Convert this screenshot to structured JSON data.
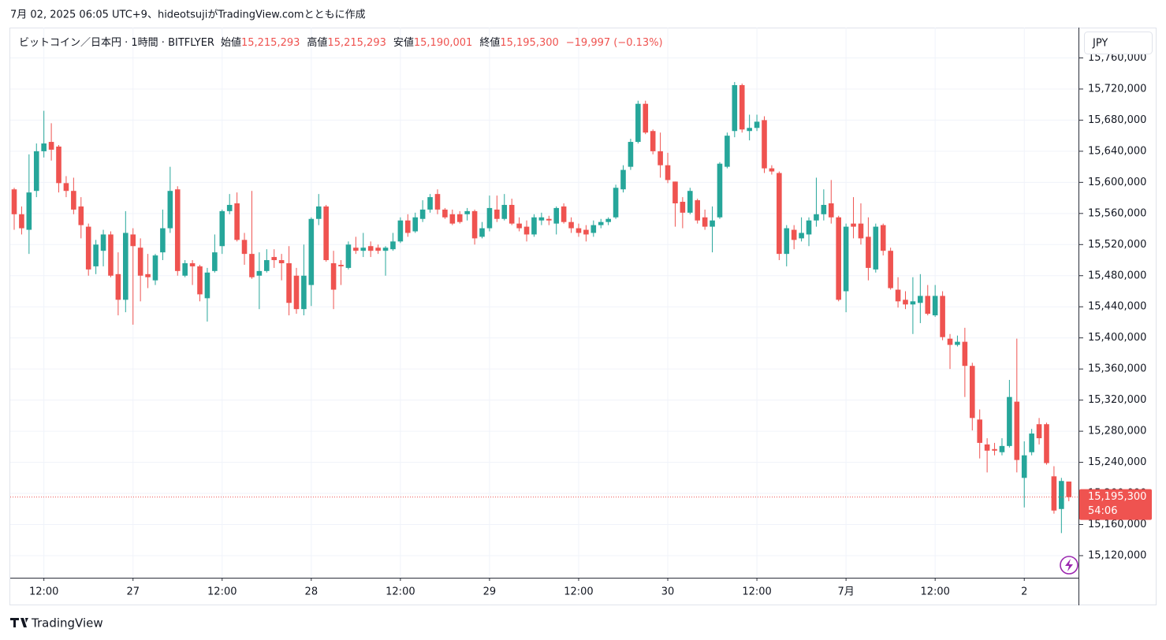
{
  "chart_data": {
    "type": "candlestick",
    "caption": "7月 02, 2025 06:05 UTC+9、hideotsujiがTradingView.comとともに作成",
    "symbol": "ビットコイン／日本円 · 1時間 · BITFLYER",
    "ohlc_legend": {
      "open_name": "始値",
      "open": "15,215,293",
      "high_name": "高値",
      "high": "15,215,293",
      "low_name": "安値",
      "low": "15,190,001",
      "close_name": "終値",
      "close": "15,195,300",
      "change": "−19,997 (−0.13%)"
    },
    "currency": "JPY",
    "last_price_label": "15,195,300",
    "countdown": "54:06",
    "brand": "TradingView",
    "up_color": "#26a69a",
    "down_color": "#ef5350",
    "grid": true,
    "open": [
      15591000,
      15559000,
      15539000,
      15589000,
      15640000,
      15652000,
      15646000,
      15599000,
      15589000,
      15569000,
      15543000,
      15492000,
      15512000,
      15533000,
      15482000,
      15449000,
      15533000,
      15516000,
      15482000,
      15474000,
      15510000,
      15541000,
      15591000,
      15480000,
      15496000,
      15492000,
      15451000,
      15486000,
      15518000,
      15563000,
      15573000,
      15526000,
      15508000,
      15480000,
      15486000,
      15504000,
      15500000,
      15496000,
      15480000,
      15437000,
      15468000,
      15553000,
      15569000,
      15496000,
      15494000,
      15490000,
      15516000,
      15512000,
      15518000,
      15516000,
      15512000,
      15514000,
      15524000,
      15551000,
      15537000,
      15553000,
      15565000,
      15585000,
      15565000,
      15559000,
      15559000,
      15559000,
      15563000,
      15530000,
      15541000,
      15565000,
      15553000,
      15571000,
      15547000,
      15543000,
      15533000,
      15551000,
      15553000,
      15547000,
      15569000,
      15549000,
      15541000,
      15539000,
      15535000,
      15545000,
      15549000,
      15555000,
      15591000,
      15620000,
      15652000,
      15701000,
      15666000,
      15640000,
      15622000,
      15601000,
      15575000,
      15561000,
      15577000,
      15555000,
      15543000,
      15555000,
      15620000,
      15666000,
      15725000,
      15666000,
      15670000,
      15680000,
      15618000,
      15612000,
      15508000,
      15539000,
      15528000,
      15533000,
      15551000,
      15559000,
      15573000,
      15555000,
      15460000,
      15547000,
      15547000,
      15530000,
      15488000,
      15545000,
      15512000,
      15462000,
      15449000,
      15443000,
      15445000,
      15454000,
      15429000,
      15454000,
      15399000,
      15391000,
      15395000,
      15364000,
      15295000,
      15263000,
      15257000,
      15253000,
      15261000,
      15318000,
      15220000,
      15253000,
      15289000,
      15289000,
      15222000,
      15180000,
      15215293
    ],
    "high": [
      15593000,
      15569000,
      15636000,
      15650000,
      15692000,
      15676000,
      15648000,
      15608000,
      15606000,
      15581000,
      15547000,
      15526000,
      15539000,
      15537000,
      15510000,
      15563000,
      15541000,
      15528000,
      15508000,
      15508000,
      15565000,
      15620000,
      15595000,
      15500000,
      15500000,
      15494000,
      15490000,
      15533000,
      15565000,
      15585000,
      15587000,
      15535000,
      15589000,
      15510000,
      15514000,
      15514000,
      15508000,
      15518000,
      15490000,
      15520000,
      15555000,
      15585000,
      15571000,
      15512000,
      15500000,
      15524000,
      15530000,
      15535000,
      15524000,
      15520000,
      15518000,
      15535000,
      15555000,
      15559000,
      15561000,
      15577000,
      15585000,
      15591000,
      15567000,
      15565000,
      15563000,
      15567000,
      15565000,
      15549000,
      15583000,
      15583000,
      15585000,
      15579000,
      15555000,
      15551000,
      15559000,
      15561000,
      15557000,
      15569000,
      15573000,
      15555000,
      15547000,
      15545000,
      15551000,
      15553000,
      15555000,
      15597000,
      15622000,
      15656000,
      15705000,
      15705000,
      15668000,
      15664000,
      15638000,
      15601000,
      15581000,
      15593000,
      15579000,
      15565000,
      15569000,
      15626000,
      15664000,
      15729000,
      15727000,
      15687000,
      15687000,
      15685000,
      15622000,
      15614000,
      15545000,
      15545000,
      15555000,
      15555000,
      15606000,
      15591000,
      15603000,
      15557000,
      15547000,
      15581000,
      15573000,
      15555000,
      15547000,
      15547000,
      15516000,
      15478000,
      15460000,
      15478000,
      15482000,
      15468000,
      15468000,
      15460000,
      15405000,
      15403000,
      15413000,
      15368000,
      15308000,
      15271000,
      15265000,
      15271000,
      15346000,
      15399000,
      15267000,
      15283000,
      15297000,
      15291000,
      15235000,
      15220000,
      15215293
    ],
    "low": [
      15539000,
      15533000,
      15508000,
      15581000,
      15632000,
      15628000,
      15587000,
      15581000,
      15559000,
      15528000,
      15480000,
      15482000,
      15492000,
      15478000,
      15429000,
      15433000,
      15417000,
      15447000,
      15464000,
      15468000,
      15500000,
      15535000,
      15480000,
      15478000,
      15468000,
      15447000,
      15421000,
      15484000,
      15508000,
      15559000,
      15524000,
      15494000,
      15476000,
      15437000,
      15484000,
      15490000,
      15474000,
      15429000,
      15431000,
      15429000,
      15441000,
      15545000,
      15498000,
      15437000,
      15468000,
      15488000,
      15508000,
      15504000,
      15504000,
      15508000,
      15480000,
      15512000,
      15522000,
      15530000,
      15535000,
      15549000,
      15561000,
      15559000,
      15553000,
      15545000,
      15547000,
      15551000,
      15520000,
      15528000,
      15537000,
      15549000,
      15551000,
      15545000,
      15537000,
      15524000,
      15530000,
      15545000,
      15545000,
      15533000,
      15547000,
      15535000,
      15530000,
      15524000,
      15530000,
      15541000,
      15545000,
      15553000,
      15587000,
      15616000,
      15650000,
      15662000,
      15636000,
      15606000,
      15599000,
      15543000,
      15541000,
      15559000,
      15547000,
      15539000,
      15510000,
      15553000,
      15618000,
      15658000,
      15664000,
      15654000,
      15666000,
      15612000,
      15610000,
      15500000,
      15492000,
      15514000,
      15524000,
      15518000,
      15543000,
      15551000,
      15547000,
      15447000,
      15433000,
      15528000,
      15520000,
      15474000,
      15484000,
      15506000,
      15462000,
      15439000,
      15437000,
      15405000,
      15419000,
      15429000,
      15427000,
      15397000,
      15360000,
      15389000,
      15324000,
      15281000,
      15245000,
      15227000,
      15249000,
      15249000,
      15259000,
      15227000,
      15182000,
      15249000,
      15263000,
      15237000,
      15174000,
      15149000,
      15190001
    ],
    "close": [
      15559000,
      15541000,
      15587000,
      15640000,
      15650000,
      15642000,
      15599000,
      15589000,
      15565000,
      15545000,
      15488000,
      15520000,
      15533000,
      15480000,
      15449000,
      15535000,
      15518000,
      15480000,
      15478000,
      15506000,
      15541000,
      15589000,
      15486000,
      15496000,
      15492000,
      15456000,
      15484000,
      15510000,
      15563000,
      15571000,
      15526000,
      15508000,
      15478000,
      15486000,
      15500000,
      15500000,
      15496000,
      15445000,
      15437000,
      15480000,
      15553000,
      15569000,
      15500000,
      15462000,
      15492000,
      15520000,
      15512000,
      15516000,
      15512000,
      15512000,
      15516000,
      15524000,
      15551000,
      15535000,
      15555000,
      15565000,
      15581000,
      15565000,
      15555000,
      15547000,
      15549000,
      15563000,
      15528000,
      15541000,
      15567000,
      15553000,
      15571000,
      15547000,
      15541000,
      15533000,
      15555000,
      15555000,
      15551000,
      15567000,
      15549000,
      15541000,
      15535000,
      15533000,
      15545000,
      15549000,
      15553000,
      15593000,
      15616000,
      15652000,
      15701000,
      15664000,
      15640000,
      15622000,
      15603000,
      15573000,
      15561000,
      15589000,
      15551000,
      15543000,
      15551000,
      15624000,
      15660000,
      15725000,
      15668000,
      15670000,
      15678000,
      15618000,
      15614000,
      15508000,
      15541000,
      15526000,
      15535000,
      15551000,
      15559000,
      15571000,
      15555000,
      15449000,
      15543000,
      15543000,
      15528000,
      15490000,
      15543000,
      15512000,
      15464000,
      15447000,
      15443000,
      15447000,
      15454000,
      15431000,
      15454000,
      15401000,
      15391000,
      15395000,
      15364000,
      15297000,
      15265000,
      15255000,
      15255000,
      15261000,
      15324000,
      15243000,
      15249000,
      15277000,
      15271000,
      15239000,
      15178000,
      15216000,
      15195300
    ],
    "xlim": [
      -0.53,
      143.3
    ],
    "xticks": [
      {
        "value": 4,
        "label": "12:00"
      },
      {
        "value": 16,
        "label": "27"
      },
      {
        "value": 28,
        "label": "12:00"
      },
      {
        "value": 40,
        "label": "28"
      },
      {
        "value": 52,
        "label": "12:00"
      },
      {
        "value": 64,
        "label": "29"
      },
      {
        "value": 76,
        "label": "12:00"
      },
      {
        "value": 88,
        "label": "30"
      },
      {
        "value": 100,
        "label": "12:00"
      },
      {
        "value": 112,
        "label": "7月"
      },
      {
        "value": 124,
        "label": "12:00"
      },
      {
        "value": 136,
        "label": "2"
      }
    ],
    "ylim": [
      15091600,
      15799000
    ],
    "yticks": [
      {
        "value": 15120000,
        "label": "15,120,000"
      },
      {
        "value": 15160000,
        "label": "15,160,000"
      },
      {
        "value": 15200000,
        "label": "15,200,000"
      },
      {
        "value": 15240000,
        "label": "15,240,000"
      },
      {
        "value": 15280000,
        "label": "15,280,000"
      },
      {
        "value": 15320000,
        "label": "15,320,000"
      },
      {
        "value": 15360000,
        "label": "15,360,000"
      },
      {
        "value": 15400000,
        "label": "15,400,000"
      },
      {
        "value": 15440000,
        "label": "15,440,000"
      },
      {
        "value": 15480000,
        "label": "15,480,000"
      },
      {
        "value": 15520000,
        "label": "15,520,000"
      },
      {
        "value": 15560000,
        "label": "15,560,000"
      },
      {
        "value": 15600000,
        "label": "15,600,000"
      },
      {
        "value": 15640000,
        "label": "15,640,000"
      },
      {
        "value": 15680000,
        "label": "15,680,000"
      },
      {
        "value": 15720000,
        "label": "15,720,000"
      },
      {
        "value": 15760000,
        "label": "15,760,000"
      }
    ]
  }
}
